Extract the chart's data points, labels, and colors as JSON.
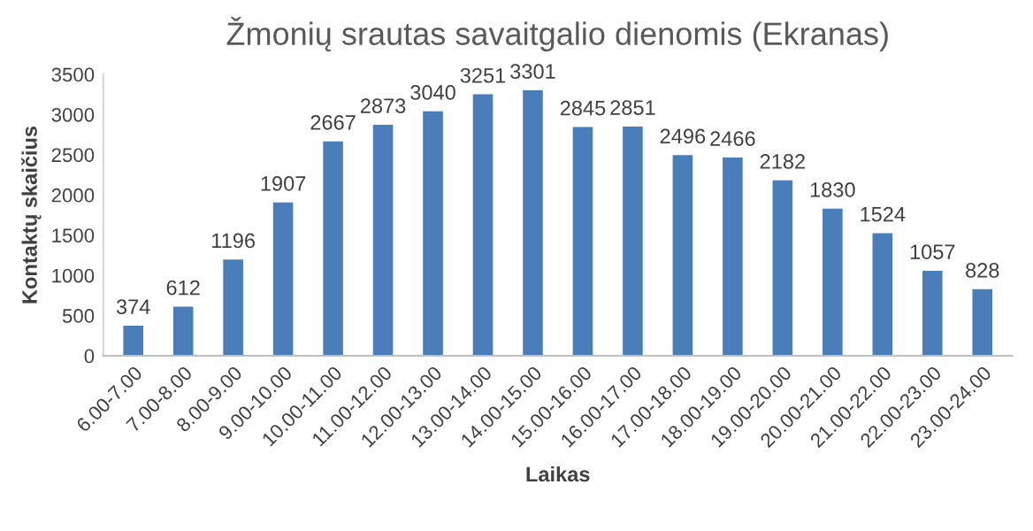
{
  "chart_data": {
    "type": "bar",
    "title": "Žmonių srautas savaitgalio dienomis (Ekranas)",
    "xlabel": "Laikas",
    "ylabel": "Kontaktų skaičius",
    "categories": [
      "6.00-7.00",
      "7.00-8.00",
      "8.00-9.00",
      "9.00-10.00",
      "10.00-11.00",
      "11.00-12.00",
      "12.00-13.00",
      "13.00-14.00",
      "14.00-15.00",
      "15.00-16.00",
      "16.00-17.00",
      "17.00-18.00",
      "18.00-19.00",
      "19.00-20.00",
      "20.00-21.00",
      "21.00-22.00",
      "22.00-23.00",
      "23.00-24.00"
    ],
    "values": [
      374,
      612,
      1196,
      1907,
      2667,
      2873,
      3040,
      3251,
      3301,
      2845,
      2851,
      2496,
      2466,
      2182,
      1830,
      1524,
      1057,
      828
    ],
    "color": "#4a7ebb",
    "ylim": [
      0,
      3500
    ],
    "yticks": [
      0,
      500,
      1000,
      1500,
      2000,
      2500,
      3000,
      3500
    ],
    "grid": false,
    "data_labels": true
  }
}
